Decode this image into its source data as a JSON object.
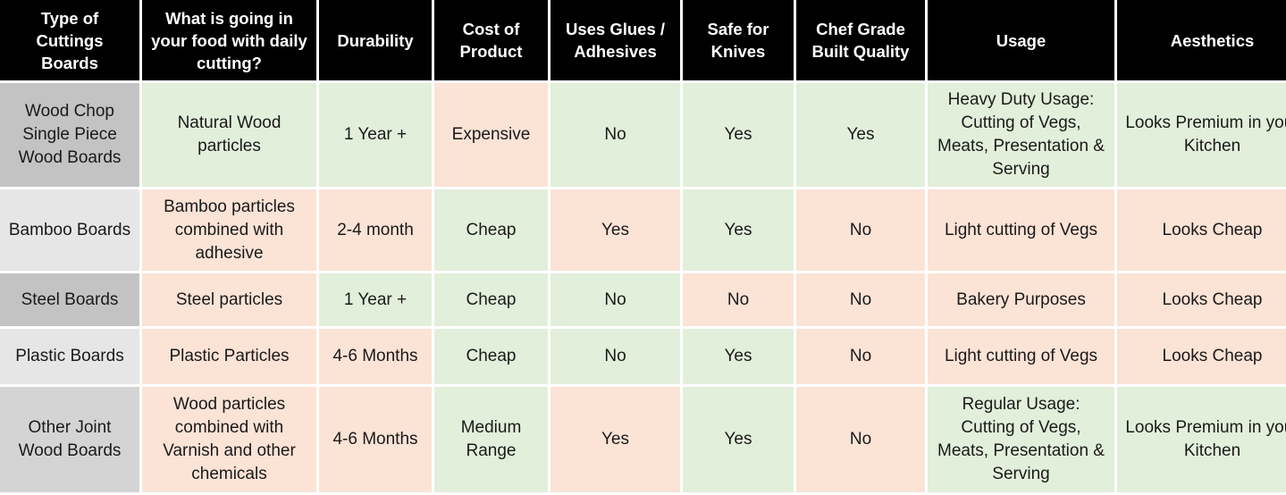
{
  "header": [
    "Type of Cuttings Boards",
    "What is going in your food with daily cutting?",
    "Durability",
    "Cost of Product",
    "Uses Glues / Adhesives",
    "Safe for Knives",
    "Chef Grade Built Quality",
    "Usage",
    "Aesthetics"
  ],
  "rows": [
    {
      "cells": [
        "Wood Chop Single Piece Wood Boards",
        "Natural Wood particles",
        "1 Year +",
        "Expensive",
        "No",
        "Yes",
        "Yes",
        "Heavy Duty Usage: Cutting of Vegs, Meats, Presentation & Serving",
        "Looks Premium in your Kitchen"
      ],
      "fills": [
        "#c3c3c3",
        "#e2efda",
        "#e2efda",
        "#fbe3d6",
        "#e2efda",
        "#e2efda",
        "#e2efda",
        "#e2efda",
        "#e2efda"
      ]
    },
    {
      "cells": [
        "Bamboo Boards",
        "Bamboo particles combined with adhesive",
        "2-4 month",
        "Cheap",
        "Yes",
        "Yes",
        "No",
        "Light cutting of Vegs",
        "Looks Cheap"
      ],
      "fills": [
        "#e6e6e6",
        "#fbe3d6",
        "#fbe3d6",
        "#e2efda",
        "#fbe3d6",
        "#e2efda",
        "#fbe3d6",
        "#fbe3d6",
        "#fbe3d6"
      ]
    },
    {
      "cells": [
        "Steel Boards",
        "Steel particles",
        "1 Year +",
        "Cheap",
        "No",
        "No",
        "No",
        "Bakery Purposes",
        "Looks Cheap"
      ],
      "fills": [
        "#c3c3c3",
        "#fbe3d6",
        "#e2efda",
        "#e2efda",
        "#e2efda",
        "#fbe3d6",
        "#fbe3d6",
        "#fbe3d6",
        "#fbe3d6"
      ]
    },
    {
      "cells": [
        "Plastic Boards",
        "Plastic Particles",
        "4-6 Months",
        "Cheap",
        "No",
        "Yes",
        "No",
        "Light cutting of Vegs",
        "Looks Cheap"
      ],
      "fills": [
        "#e6e6e6",
        "#fbe3d6",
        "#fbe3d6",
        "#e2efda",
        "#e2efda",
        "#e2efda",
        "#fbe3d6",
        "#fbe3d6",
        "#fbe3d6"
      ]
    },
    {
      "cells": [
        "Other Joint Wood Boards",
        "Wood particles combined with Varnish and other chemicals",
        "4-6 Months",
        "Medium Range",
        "Yes",
        "Yes",
        "No",
        "Regular Usage: Cutting of Vegs, Meats, Presentation & Serving",
        "Looks Premium in your Kitchen"
      ],
      "fills": [
        "#d4d4d4",
        "#fbe3d6",
        "#fbe3d6",
        "#e2efda",
        "#fbe3d6",
        "#e2efda",
        "#fbe3d6",
        "#e2efda",
        "#e2efda"
      ]
    }
  ]
}
